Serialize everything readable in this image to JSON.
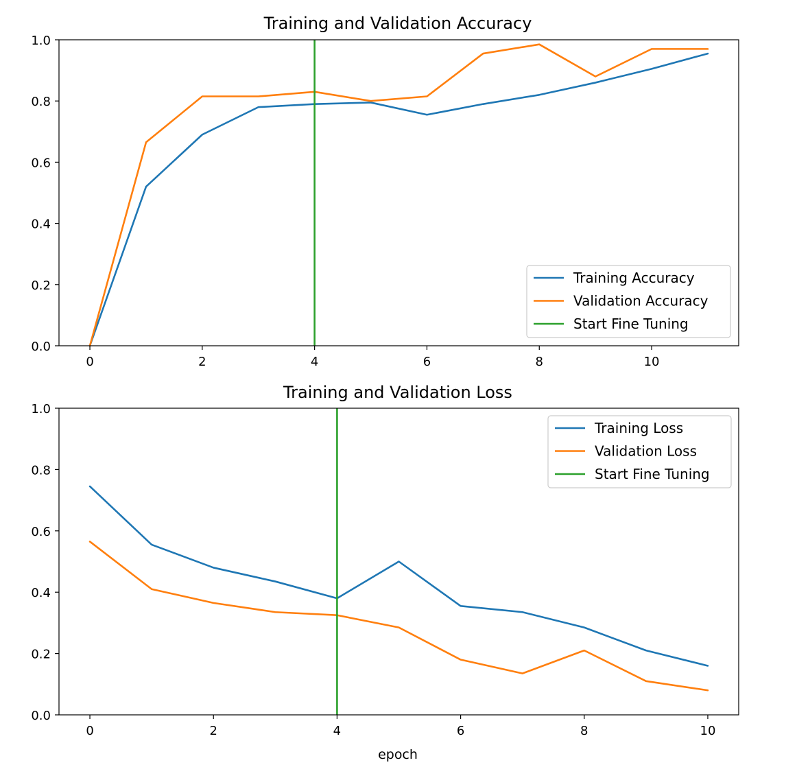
{
  "chart_data": [
    {
      "type": "line",
      "title": "Training and Validation Accuracy",
      "xlabel": "",
      "ylabel": "",
      "xlim": [
        -0.55,
        11.55
      ],
      "ylim": [
        0,
        1.0
      ],
      "xticks": [
        0,
        2,
        4,
        6,
        8,
        10
      ],
      "yticks": [
        0.0,
        0.2,
        0.4,
        0.6,
        0.8,
        1.0
      ],
      "grid": false,
      "legend_position": "lower-right",
      "series": [
        {
          "name": "Training Accuracy",
          "color": "#1f77b4",
          "x": [
            0,
            1,
            2,
            3,
            4,
            5,
            6,
            7,
            8,
            9,
            10,
            11
          ],
          "values": [
            0.0,
            0.52,
            0.69,
            0.78,
            0.79,
            0.795,
            0.755,
            0.79,
            0.82,
            0.86,
            0.905,
            0.955
          ]
        },
        {
          "name": "Validation Accuracy",
          "color": "#ff7f0e",
          "x": [
            0,
            1,
            2,
            3,
            4,
            5,
            6,
            7,
            8,
            9,
            10,
            11
          ],
          "values": [
            0.0,
            0.665,
            0.815,
            0.815,
            0.83,
            0.8,
            0.815,
            0.955,
            0.985,
            0.88,
            0.97,
            0.97
          ]
        }
      ],
      "vlines": [
        {
          "name": "Start Fine Tuning",
          "color": "#2ca02c",
          "x": 4
        }
      ]
    },
    {
      "type": "line",
      "title": "Training and Validation Loss",
      "xlabel": "epoch",
      "ylabel": "",
      "xlim": [
        -0.5,
        10.5
      ],
      "ylim": [
        0,
        1.0
      ],
      "xticks": [
        0,
        2,
        4,
        6,
        8,
        10
      ],
      "yticks": [
        0.0,
        0.2,
        0.4,
        0.6,
        0.8,
        1.0
      ],
      "grid": false,
      "legend_position": "upper-right",
      "series": [
        {
          "name": "Training Loss",
          "color": "#1f77b4",
          "x": [
            0,
            1,
            2,
            3,
            4,
            5,
            6,
            7,
            8,
            9,
            10
          ],
          "values": [
            0.745,
            0.555,
            0.48,
            0.435,
            0.38,
            0.5,
            0.355,
            0.335,
            0.285,
            0.21,
            0.16
          ]
        },
        {
          "name": "Validation Loss",
          "color": "#ff7f0e",
          "x": [
            0,
            1,
            2,
            3,
            4,
            5,
            6,
            7,
            8,
            9,
            10
          ],
          "values": [
            0.565,
            0.41,
            0.365,
            0.335,
            0.325,
            0.285,
            0.18,
            0.135,
            0.21,
            0.11,
            0.08
          ]
        }
      ],
      "vlines": [
        {
          "name": "Start Fine Tuning",
          "color": "#2ca02c",
          "x": 4
        }
      ]
    }
  ]
}
